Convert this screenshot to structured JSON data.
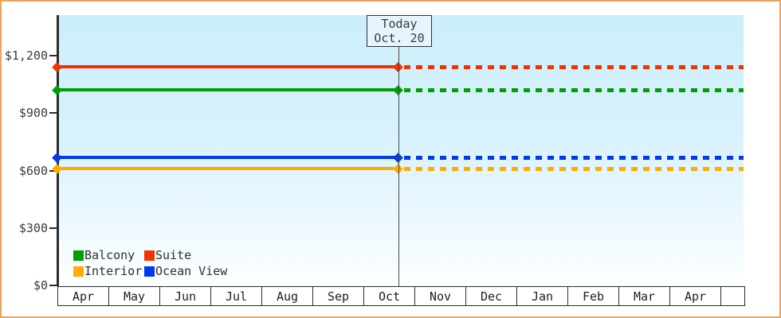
{
  "colors": {
    "frame_border": "#e8a45c",
    "plot_bg_top": "#cbeefb",
    "plot_bg_bottom": "#fdffff",
    "axis": "#2b2b2b",
    "text": "#3a3a3a"
  },
  "chart_data": {
    "type": "line",
    "title": "",
    "x_axis": {
      "categories": [
        "Apr",
        "May",
        "Jun",
        "Jul",
        "Aug",
        "Sep",
        "Oct",
        "Nov",
        "Dec",
        "Jan",
        "Feb",
        "Mar",
        "Apr"
      ],
      "note": "month cells drawn as a bordered strip below the plot; trailing empty partial cell"
    },
    "y_axis": {
      "ticks": [
        0,
        300,
        600,
        900,
        1200
      ],
      "tick_labels": [
        "$0",
        "$300",
        "$600",
        "$900",
        "$1,200"
      ],
      "range": [
        0,
        1400
      ],
      "grid": "off"
    },
    "series": [
      {
        "name": "Suite",
        "color": "#f43200",
        "value": 1140
      },
      {
        "name": "Balcony",
        "color": "#00a000",
        "value": 1020
      },
      {
        "name": "Ocean View",
        "color": "#0239e8",
        "value": 670
      },
      {
        "name": "Interior",
        "color": "#ffab00",
        "value": 610
      }
    ],
    "series_note": "each series is a flat horizontal price line across all months; solid with diamond endpoint markers before today, dashed after today",
    "today": {
      "line1": "Today",
      "line2": "Oct. 20",
      "month": "Oct",
      "day": 20
    },
    "legend": {
      "position": "bottom-left inside plot, 2 columns x 2 rows",
      "items": [
        {
          "label": "Balcony",
          "color": "#00a000"
        },
        {
          "label": "Suite",
          "color": "#f43200"
        },
        {
          "label": "Interior",
          "color": "#ffab00"
        },
        {
          "label": "Ocean View",
          "color": "#0239e8"
        }
      ]
    }
  }
}
